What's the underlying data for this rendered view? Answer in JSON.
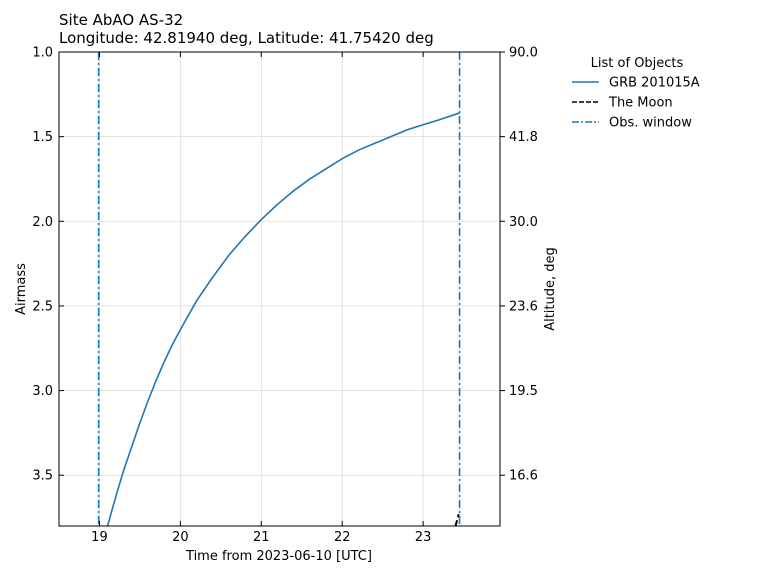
{
  "chart_data": {
    "type": "line",
    "title": "Site AbAO AS-32",
    "subtitle": "Longitude: 42.81940 deg, Latitude: 41.75420 deg",
    "xlabel": "Time from 2023-06-10 [UTC]",
    "ylabel": "Airmass",
    "ylabel_right": "Altitude, deg",
    "xlim": [
      18.5,
      23.95
    ],
    "ylim": [
      1.0,
      3.8
    ],
    "y_inverted": true,
    "grid": true,
    "x_ticks": [
      19,
      20,
      21,
      22,
      23
    ],
    "x_tick_labels": [
      "19",
      "20",
      "21",
      "22",
      "23"
    ],
    "y_ticks": [
      1.0,
      1.5,
      2.0,
      2.5,
      3.0,
      3.5
    ],
    "y_tick_labels": [
      "1.0",
      "1.5",
      "2.0",
      "2.5",
      "3.0",
      "3.5"
    ],
    "y_right_tick_labels": [
      "90.0",
      "41.8",
      "30.0",
      "23.6",
      "19.5",
      "16.6"
    ],
    "legend": {
      "title": "List of Objects",
      "placement": "outside-right",
      "entries": [
        "GRB 201015A",
        "The Moon",
        "Obs. window"
      ]
    },
    "series": [
      {
        "name": "GRB 201015A",
        "style": "solid",
        "color": "#1f77b4",
        "x": [
          19.1,
          19.2,
          19.3,
          19.4,
          19.5,
          19.6,
          19.7,
          19.8,
          19.9,
          20.0,
          20.2,
          20.4,
          20.6,
          20.8,
          21.0,
          21.2,
          21.4,
          21.6,
          21.8,
          22.0,
          22.2,
          22.4,
          22.6,
          22.8,
          23.0,
          23.2,
          23.45
        ],
        "y": [
          3.8,
          3.63,
          3.47,
          3.33,
          3.19,
          3.06,
          2.94,
          2.83,
          2.73,
          2.64,
          2.47,
          2.33,
          2.2,
          2.09,
          1.99,
          1.9,
          1.82,
          1.75,
          1.69,
          1.63,
          1.58,
          1.54,
          1.5,
          1.46,
          1.43,
          1.4,
          1.36
        ]
      },
      {
        "name": "The Moon",
        "style": "dashed",
        "color": "#000000",
        "x": [
          23.4,
          23.44
        ],
        "y": [
          3.8,
          3.73
        ]
      }
    ],
    "vlines": [
      {
        "name": "Obs. window",
        "style": "dashdot",
        "color": "#1f77b4",
        "x": 18.99
      },
      {
        "name": "Obs. window",
        "style": "dashdot",
        "color": "#1f77b4",
        "x": 23.45
      }
    ]
  }
}
